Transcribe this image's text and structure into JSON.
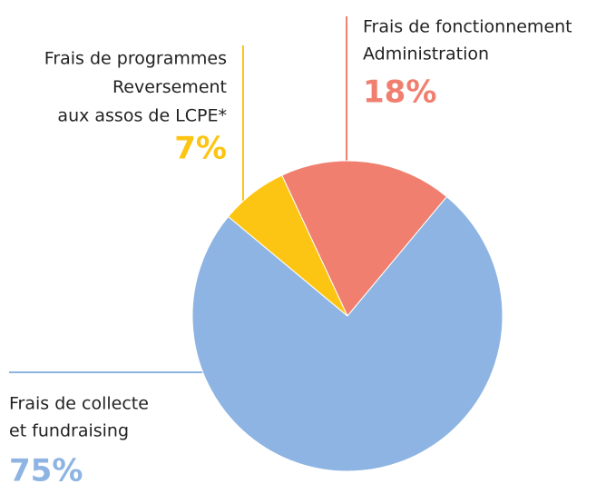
{
  "chart_data": {
    "type": "pie",
    "categories": [
      [
        "Frais de fonctionnement",
        "Administration"
      ],
      [
        "Frais de collecte",
        "et fundraising"
      ],
      [
        "Frais de programmes",
        "Reversement",
        "aux assos de LCPE*"
      ]
    ],
    "values": [
      18,
      75,
      7
    ],
    "value_labels": [
      "18%",
      "75%",
      "7%"
    ],
    "colors": [
      "#f07f6f",
      "#8db4e2",
      "#fdc513"
    ]
  }
}
